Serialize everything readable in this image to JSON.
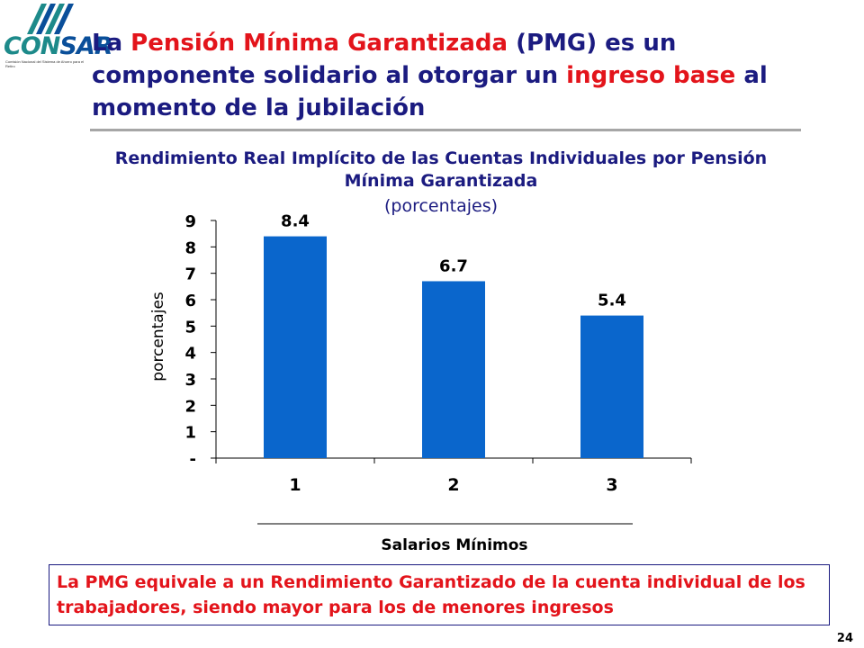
{
  "logo": {
    "part1": "CON",
    "part2": "SAR",
    "subtitle": "Comisión Nacional del Sistema de Ahorro para el Retiro"
  },
  "title": {
    "p1": "La ",
    "p2": "Pensión Mínima Garantizada",
    "p3": " (PMG) es un componente solidario al otorgar un ",
    "p4": "ingreso base",
    "p5": " al momento de la jubilación"
  },
  "colors": {
    "bar": "#0a66cc",
    "title": "#1b1b80",
    "accent": "#e3141b"
  },
  "chart_data": {
    "type": "bar",
    "title": "Rendimiento Real Implícito de las Cuentas Individuales por Pensión Mínima Garantizada",
    "subtitle": "(porcentajes)",
    "categories": [
      "1",
      "2",
      "3"
    ],
    "values": [
      8.4,
      6.7,
      5.4
    ],
    "value_labels": [
      "8.4",
      "6.7",
      "5.4"
    ],
    "xlabel": "Salarios Mínimos",
    "ylabel": "porcentajes",
    "ylim": [
      0,
      9
    ],
    "yticks": [
      "-",
      "1",
      "2",
      "3",
      "4",
      "5",
      "6",
      "7",
      "8",
      "9"
    ],
    "grid": false,
    "legend": "none"
  },
  "note": "La PMG equivale a un Rendimiento Garantizado de la cuenta individual de los trabajadores, siendo mayor para los de menores ingresos",
  "page_number": "24"
}
